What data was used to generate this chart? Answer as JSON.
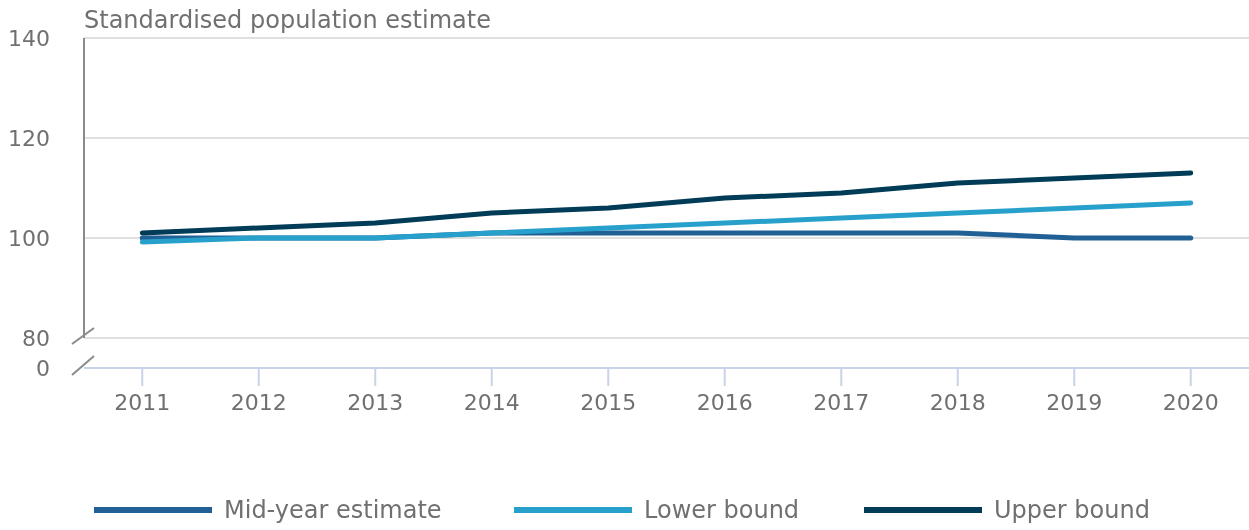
{
  "chart_data": {
    "type": "line",
    "title": "Standardised population estimate",
    "categories": [
      "2011",
      "2012",
      "2013",
      "2014",
      "2015",
      "2016",
      "2017",
      "2018",
      "2019",
      "2020"
    ],
    "series": [
      {
        "name": "Mid-year estimate",
        "color": "#206095",
        "values": [
          100,
          100,
          100,
          101,
          101,
          101,
          101,
          101,
          100,
          100
        ]
      },
      {
        "name": "Lower bound",
        "color": "#27a0cc",
        "values": [
          99.2,
          100,
          100,
          101,
          102,
          103,
          104,
          105,
          106,
          107
        ]
      },
      {
        "name": "Upper bound",
        "color": "#003c57",
        "values": [
          101,
          102,
          103,
          105,
          106,
          108,
          109,
          111,
          112,
          113
        ]
      }
    ],
    "ylim": [
      80,
      140
    ],
    "yticks": [
      80,
      100,
      120,
      140
    ],
    "annotations": [
      "0"
    ],
    "grid": "y",
    "legend": "bottom",
    "line_style": "solid",
    "marker": "none"
  }
}
